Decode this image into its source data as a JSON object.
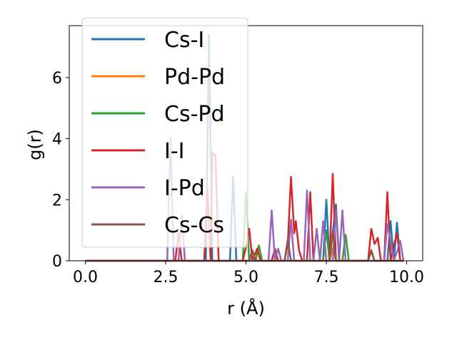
{
  "chart_data": {
    "type": "line",
    "title": "",
    "xlabel": "r (Å)",
    "ylabel": "g(r)",
    "xlim": [
      -0.5,
      10.5
    ],
    "ylim": [
      0,
      7.7
    ],
    "xticks": [
      0.0,
      2.5,
      5.0,
      7.5,
      10.0
    ],
    "xtick_labels": [
      "0.0",
      "2.5",
      "5.0",
      "7.5",
      "10.0"
    ],
    "yticks": [
      0,
      2,
      4,
      6
    ],
    "ytick_labels": [
      "0",
      "2",
      "4",
      "6"
    ],
    "grid": false,
    "legend_position": "top-left",
    "series": [
      {
        "name": "Cs-I",
        "color": "#1f77b4",
        "x": [
          0,
          3.75,
          3.85,
          3.95,
          4.05,
          4.5,
          4.6,
          4.7,
          7.4,
          7.5,
          7.6,
          7.8,
          7.9,
          8.0,
          9.4,
          9.5,
          9.6,
          9.7,
          9.8,
          9.9
        ],
        "y": [
          0,
          0,
          7.4,
          0,
          0,
          0,
          2.75,
          0,
          0,
          2.0,
          0,
          1.85,
          0,
          0,
          0,
          1.3,
          0,
          1.25,
          0,
          0
        ]
      },
      {
        "name": "Pd-Pd",
        "color": "#ff7f0e",
        "x": [
          0,
          7.6,
          7.7,
          7.8,
          8.8,
          8.9,
          9.0,
          9.9
        ],
        "y": [
          0,
          0,
          0.4,
          0,
          0,
          0.3,
          0,
          0
        ]
      },
      {
        "name": "Cs-Pd",
        "color": "#2ca02c",
        "x": [
          0,
          4.9,
          5.0,
          5.1,
          5.3,
          5.4,
          5.5,
          7.4,
          7.5,
          7.6,
          8.0,
          8.1,
          8.2,
          9.9
        ],
        "y": [
          0,
          0,
          2.25,
          0,
          0,
          0.5,
          0,
          0,
          1.0,
          0,
          0,
          0.85,
          0,
          0
        ]
      },
      {
        "name": "I-I",
        "color": "#d62728",
        "x": [
          0,
          2.8,
          2.9,
          3.0,
          3.7,
          3.8,
          3.9,
          3.95,
          4.05,
          4.15,
          4.9,
          5.0,
          5.1,
          5.2,
          5.35,
          5.45,
          5.8,
          5.9,
          6.0,
          6.2,
          6.3,
          6.4,
          6.5,
          6.55,
          6.65,
          6.75,
          6.9,
          7.0,
          7.1,
          7.6,
          7.7,
          7.8,
          7.9,
          8.8,
          8.9,
          9.0,
          9.1,
          9.2,
          9.3,
          9.4,
          9.5,
          9.6,
          9.7,
          9.8,
          9.9
        ],
        "y": [
          0,
          0,
          0.9,
          0,
          0,
          2.4,
          0,
          3.55,
          3.45,
          0,
          0,
          0.45,
          1.05,
          0,
          0.4,
          0,
          0,
          0.4,
          0,
          0,
          0.55,
          2.75,
          0.9,
          1.3,
          0.35,
          0,
          0,
          2.25,
          0,
          0,
          2.85,
          0,
          0,
          0,
          1.05,
          0.55,
          0.75,
          0,
          0,
          2.25,
          0,
          0.5,
          0.9,
          0,
          0
        ]
      },
      {
        "name": "I-Pd",
        "color": "#9467bd",
        "x": [
          0,
          2.55,
          2.65,
          2.75,
          2.9,
          3.0,
          3.1,
          5.7,
          5.8,
          5.9,
          6.0,
          6.1,
          6.2,
          6.3,
          6.4,
          6.5,
          6.6,
          6.7,
          6.8,
          6.9,
          7.0,
          7.1,
          7.2,
          7.3,
          7.4,
          7.5,
          7.6,
          7.7,
          7.8,
          7.9,
          8.0,
          8.1,
          8.2,
          9.3,
          9.4,
          9.5,
          9.6,
          9.7,
          9.8,
          9.9
        ],
        "y": [
          0,
          0,
          4.05,
          0,
          0,
          1.5,
          0,
          0,
          1.65,
          0,
          0.4,
          0,
          0,
          0,
          1.35,
          0,
          0,
          0,
          0,
          2.3,
          0,
          0,
          1.05,
          0,
          1.3,
          0,
          0,
          0,
          1.65,
          0,
          1.65,
          0,
          0,
          0,
          1.2,
          0.65,
          0,
          0.3,
          0.65,
          0
        ]
      },
      {
        "name": "Cs-Cs",
        "color": "#8c564b",
        "x": [
          0,
          5.1,
          5.2,
          5.3,
          6.2,
          6.3,
          6.4,
          7.6,
          7.7,
          7.8,
          8.8,
          8.9,
          9.0,
          9.9
        ],
        "y": [
          0,
          0,
          0.35,
          0,
          0,
          0.7,
          0,
          0,
          0.95,
          0,
          0,
          0.35,
          0,
          0
        ]
      }
    ]
  }
}
